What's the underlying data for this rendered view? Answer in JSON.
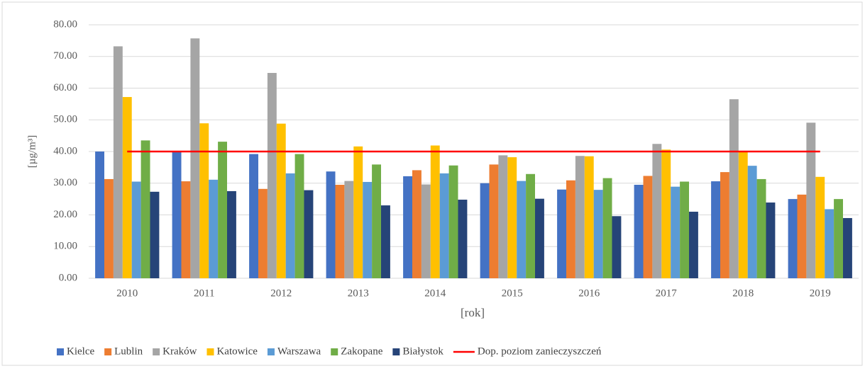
{
  "chart_data": {
    "type": "bar",
    "y_label": "[µg/m³]",
    "x_label": "[rok]",
    "categories": [
      "2010",
      "2011",
      "2012",
      "2013",
      "2014",
      "2015",
      "2016",
      "2017",
      "2018",
      "2019"
    ],
    "series": [
      {
        "name": "Kielce",
        "color": "#4472c4",
        "values": [
          40.0,
          39.8,
          39.2,
          33.7,
          32.2,
          30.0,
          28.0,
          29.5,
          30.6,
          25.0
        ]
      },
      {
        "name": "Lublin",
        "color": "#ed7d31",
        "values": [
          31.3,
          30.6,
          28.2,
          29.5,
          34.1,
          35.9,
          30.9,
          32.3,
          33.5,
          26.4
        ]
      },
      {
        "name": "Kraków",
        "color": "#a5a5a5",
        "values": [
          73.2,
          75.7,
          64.8,
          30.7,
          29.6,
          38.8,
          38.6,
          42.4,
          56.5,
          49.1
        ]
      },
      {
        "name": "Katowice",
        "color": "#ffc000",
        "values": [
          57.2,
          48.9,
          48.8,
          41.6,
          41.9,
          38.2,
          38.5,
          40.6,
          39.8,
          32.0
        ]
      },
      {
        "name": "Warszawa",
        "color": "#5b9bd5",
        "values": [
          30.5,
          31.1,
          33.1,
          30.4,
          33.1,
          30.7,
          27.9,
          28.9,
          35.5,
          21.8
        ]
      },
      {
        "name": "Zakopane",
        "color": "#70ad47",
        "values": [
          43.5,
          43.1,
          39.2,
          35.9,
          35.6,
          32.9,
          31.6,
          30.5,
          31.3,
          25.0
        ]
      },
      {
        "name": "Białystok",
        "color": "#264478",
        "values": [
          27.3,
          27.5,
          27.8,
          23.0,
          24.8,
          25.1,
          19.6,
          21.0,
          23.9,
          19.0
        ]
      },
      {
        "name": "Dop. poziom zanieczyszczeń",
        "color": "#ff0000",
        "type": "line",
        "values": [
          40,
          40,
          40,
          40,
          40,
          40,
          40,
          40,
          40,
          40
        ]
      }
    ],
    "ylim": [
      0,
      80
    ],
    "yticks": [
      {
        "value": 0,
        "label": "0.00"
      },
      {
        "value": 10,
        "label": "10.00"
      },
      {
        "value": 20,
        "label": "20.00"
      },
      {
        "value": 30,
        "label": "30.00"
      },
      {
        "value": 40,
        "label": "40.00"
      },
      {
        "value": 50,
        "label": "50.00"
      },
      {
        "value": 60,
        "label": "60.00"
      },
      {
        "value": 70,
        "label": "70.00"
      },
      {
        "value": 80,
        "label": "80.00"
      }
    ],
    "grid": true,
    "legend": "bottom"
  }
}
